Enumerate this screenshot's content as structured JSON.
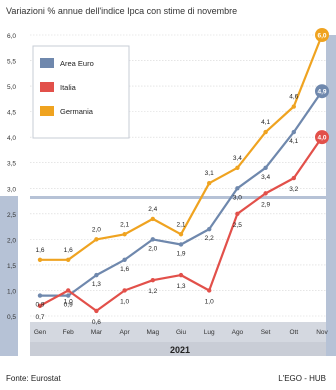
{
  "title": "Variazioni % annue dell'indice Ipca con stime di novembre",
  "source": "Fonte: Eurostat",
  "credit": "L'EGO - HUB",
  "colors": {
    "area_euro": "#6f88ad",
    "italia": "#e2504a",
    "germania": "#efa320",
    "frame": "#b6c2d6",
    "gutter": "#d4d8e0",
    "year_band": "#c9cdd6"
  },
  "chart_data": {
    "type": "line",
    "categories": [
      "Gen",
      "Feb",
      "Mar",
      "Apr",
      "Mag",
      "Giu",
      "Lug",
      "Ago",
      "Set",
      "Ott",
      "Nov"
    ],
    "year": "2021",
    "ylim": [
      0.5,
      6.0
    ],
    "yticks": [
      "0,5",
      "1,0",
      "1,5",
      "2,0",
      "2,5",
      "3,0",
      "3,5",
      "4,0",
      "4,5",
      "5,0",
      "5,5",
      "6,0"
    ],
    "legend_position": "top-left",
    "series": [
      {
        "name": "Area Euro",
        "key": "area_euro",
        "values": [
          0.9,
          0.9,
          1.3,
          1.6,
          2.0,
          1.9,
          2.2,
          3.0,
          3.4,
          4.1,
          4.9
        ],
        "labels": [
          "0,9",
          "0,9",
          "1,3",
          "1,6",
          "2,0",
          "1,9",
          "2,2",
          "3,0",
          "3,4",
          "4,1",
          "4,9"
        ]
      },
      {
        "name": "Italia",
        "key": "italia",
        "values": [
          0.7,
          1.0,
          0.6,
          1.0,
          1.2,
          1.3,
          1.0,
          2.5,
          2.9,
          3.2,
          4.0
        ],
        "labels": [
          "0,7",
          "1,0",
          "0,6",
          "1,0",
          "1,2",
          "1,3",
          "1,0",
          "2,5",
          "2,9",
          "3,2",
          "4,0"
        ]
      },
      {
        "name": "Germania",
        "key": "germania",
        "values": [
          1.6,
          1.6,
          2.0,
          2.1,
          2.4,
          2.1,
          3.1,
          3.4,
          4.1,
          4.6,
          6.0
        ],
        "labels": [
          "1,6",
          "1,6",
          "2,0",
          "2,1",
          "2,4",
          "2,1",
          "3,1",
          "3,4",
          "4,1",
          "4,6",
          "6,0"
        ]
      }
    ]
  }
}
